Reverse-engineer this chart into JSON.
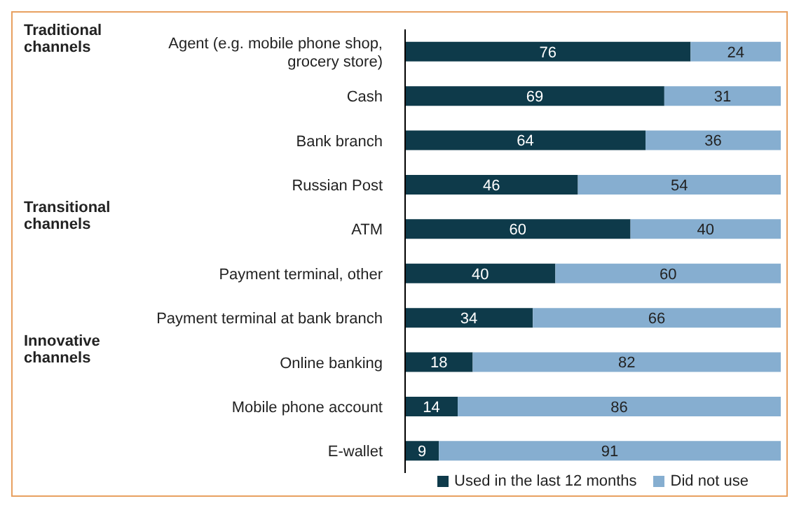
{
  "chart_data": {
    "type": "bar",
    "orientation": "horizontal",
    "stacked": true,
    "data_labels": true,
    "legend": "bottom",
    "tick_labels": "y",
    "xlim": [
      0,
      100
    ],
    "categories": [
      "Agent (e.g. mobile phone shop, grocery store)",
      "Cash",
      "Bank branch",
      "Russian Post",
      "ATM",
      "Payment terminal, other",
      "Payment terminal at bank branch",
      "Online banking",
      "Mobile phone account",
      "E-wallet"
    ],
    "series": [
      {
        "name": "Used in the last 12 months",
        "color": "#0e3a4a",
        "values": [
          76,
          69,
          64,
          46,
          60,
          40,
          34,
          18,
          14,
          9
        ]
      },
      {
        "name": "Did not use",
        "color": "#86aed0",
        "values": [
          24,
          31,
          36,
          54,
          40,
          60,
          66,
          82,
          86,
          91
        ]
      }
    ],
    "annotations": [
      "Traditional channels",
      "Transitional channels",
      "Innovative channels"
    ]
  }
}
